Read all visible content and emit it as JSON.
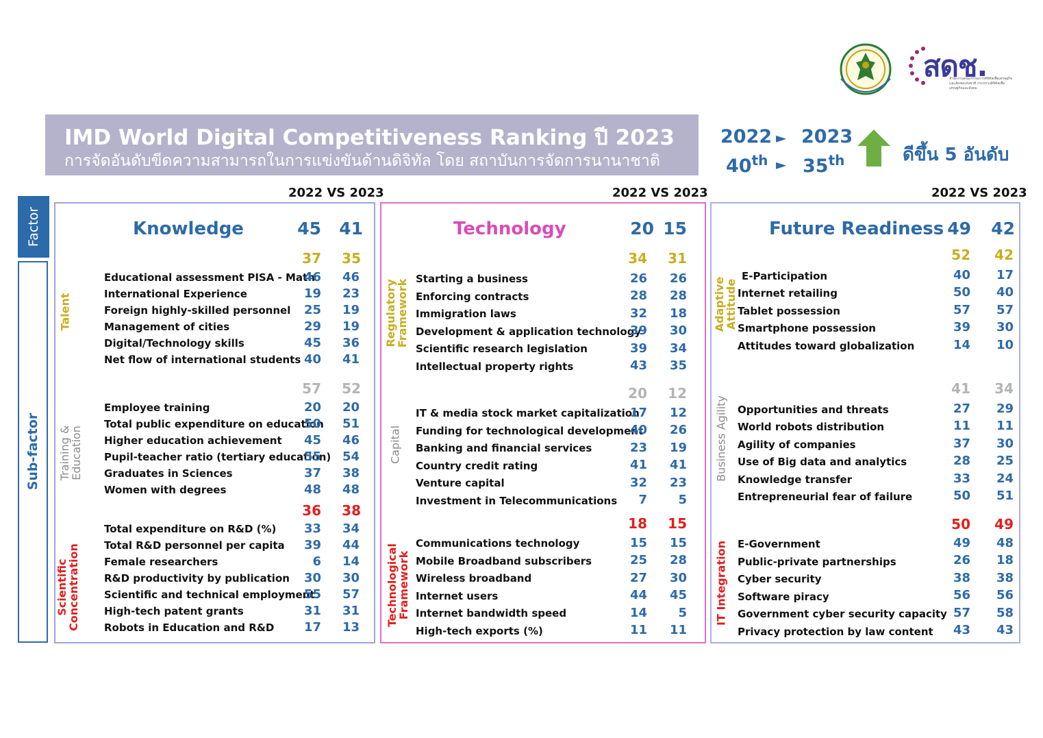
{
  "banner": {
    "title": "IMD World Digital Competitiveness Ranking ปี 2023",
    "subtitle": "การจัดอันดับขีดความสามารถในการแข่งขันด้านดิจิทัล โดย สถาบันการจัดการนานาชาติ"
  },
  "logos": {
    "sdc_text": "สดช.",
    "sdc_small": "สำนักงานคณะกรรมการดิจิทัลเพื่อเศรษฐกิจและสังคมแห่งชาติ กระทรวงดิจิทัลเพื่อเศรษฐกิจและสังคม",
    "mdes_alt": "Ministry of Digital Economy and Society"
  },
  "overall": {
    "year_2022": "2022",
    "year_2023": "2023",
    "rank_2022": "40",
    "rank_2023": "35",
    "rank_suffix": "th",
    "arrow": "►",
    "improvement_text": "ดีขึ้น 5 อันดับ",
    "up_arrow_color": "#6fae45"
  },
  "labels": {
    "vs": "2022 VS 2023",
    "factor": "Factor",
    "sub_factor": "Sub-factor"
  },
  "colors": {
    "blue": "#2d6aa9",
    "gold": "#c9ad1e",
    "gray": "#b4b4b4",
    "red": "#e0201e",
    "technology_title": "#d94cb8"
  },
  "knowledge": {
    "title": "Knowledge",
    "v2022": "45",
    "v2023": "41",
    "talent": {
      "label": "Talent",
      "v2022": "37",
      "v2023": "35",
      "rows": [
        {
          "name": "Educational assessment PISA - Math",
          "a": "46",
          "b": "46"
        },
        {
          "name": "International Experience",
          "a": "19",
          "b": "23"
        },
        {
          "name": "Foreign highly-skilled personnel",
          "a": "25",
          "b": "19"
        },
        {
          "name": "Management of cities",
          "a": "29",
          "b": "19"
        },
        {
          "name": "Digital/Technology skills",
          "a": "45",
          "b": "36"
        },
        {
          "name": "Net flow of international students",
          "a": "40",
          "b": "41"
        }
      ]
    },
    "training": {
      "label1": "Training &",
      "label2": "Education",
      "v2022": "57",
      "v2023": "52",
      "rows": [
        {
          "name": "Employee training",
          "a": "20",
          "b": "20"
        },
        {
          "name": "Total public expenditure on education",
          "a": "50",
          "b": "51"
        },
        {
          "name": "Higher education achievement",
          "a": "45",
          "b": "46"
        },
        {
          "name": "Pupil-teacher ratio (tertiary education)",
          "a": "55",
          "b": "54"
        },
        {
          "name": "Graduates in Sciences",
          "a": "37",
          "b": "38"
        },
        {
          "name": "Women with degrees",
          "a": "48",
          "b": "48"
        }
      ]
    },
    "scientific": {
      "label1": "Scientific",
      "label2": "Concentration",
      "v2022": "36",
      "v2023": "38",
      "rows": [
        {
          "name": "Total expenditure on R&D (%)",
          "a": "33",
          "b": "34"
        },
        {
          "name": "Total R&D personnel per capita",
          "a": "39",
          "b": "44"
        },
        {
          "name": "Female researchers",
          "a": "6",
          "b": "14"
        },
        {
          "name": "R&D productivity by publication",
          "a": "30",
          "b": "30"
        },
        {
          "name": "Scientific and technical employment",
          "a": "55",
          "b": "57"
        },
        {
          "name": "High-tech patent grants",
          "a": "31",
          "b": "31"
        },
        {
          "name": "Robots in Education and R&D",
          "a": "17",
          "b": "13"
        }
      ]
    }
  },
  "technology": {
    "title": "Technology",
    "v2022": "20",
    "v2023": "15",
    "regulatory": {
      "label1": "Regulatory",
      "label2": "Framework",
      "v2022": "34",
      "v2023": "31",
      "rows": [
        {
          "name": "Starting a business",
          "a": "26",
          "b": "26"
        },
        {
          "name": "Enforcing contracts",
          "a": "28",
          "b": "28"
        },
        {
          "name": "Immigration laws",
          "a": "32",
          "b": "18"
        },
        {
          "name": "Development & application technology",
          "a": "39",
          "b": "30"
        },
        {
          "name": "Scientific research legislation",
          "a": "39",
          "b": "34"
        },
        {
          "name": "Intellectual property rights",
          "a": "43",
          "b": "35"
        }
      ]
    },
    "capital": {
      "label": "Capital",
      "v2022": "20",
      "v2023": "12",
      "rows": [
        {
          "name": "IT & media stock market capitalization",
          "a": "17",
          "b": "12"
        },
        {
          "name": "Funding for technological development",
          "a": "40",
          "b": "26"
        },
        {
          "name": "Banking and financial services",
          "a": "23",
          "b": "19"
        },
        {
          "name": "Country credit rating",
          "a": "41",
          "b": "41"
        },
        {
          "name": "Venture capital",
          "a": "32",
          "b": "23"
        },
        {
          "name": "Investment in Telecommunications",
          "a": "7",
          "b": "5"
        }
      ]
    },
    "techframework": {
      "label1": "Technological",
      "label2": "Framework",
      "v2022": "18",
      "v2023": "15",
      "rows": [
        {
          "name": "Communications technology",
          "a": "15",
          "b": "15"
        },
        {
          "name": "Mobile Broadband subscribers",
          "a": "25",
          "b": "28"
        },
        {
          "name": "Wireless broadband",
          "a": "27",
          "b": "30"
        },
        {
          "name": "Internet users",
          "a": "44",
          "b": "45"
        },
        {
          "name": "Internet bandwidth speed",
          "a": "14",
          "b": "5"
        },
        {
          "name": "High-tech exports (%)",
          "a": "11",
          "b": "11"
        }
      ]
    }
  },
  "future": {
    "title": "Future Readiness",
    "v2022": "49",
    "v2023": "42",
    "adaptive": {
      "label1": "Adaptive",
      "label2": "Attitude",
      "v2022": "52",
      "v2023": "42",
      "rows": [
        {
          "name": "E-Participation",
          "a": "40",
          "b": "17"
        },
        {
          "name": "Internet retailing",
          "a": "50",
          "b": "40"
        },
        {
          "name": "Tablet possession",
          "a": "57",
          "b": "57"
        },
        {
          "name": "Smartphone possession",
          "a": "39",
          "b": "30"
        },
        {
          "name": "Attitudes toward globalization",
          "a": "14",
          "b": "10"
        }
      ]
    },
    "agility": {
      "label": "Business Agility",
      "v2022": "41",
      "v2023": "34",
      "rows": [
        {
          "name": "Opportunities and threats",
          "a": "27",
          "b": "29"
        },
        {
          "name": "World robots distribution",
          "a": "11",
          "b": "11"
        },
        {
          "name": "Agility of companies",
          "a": "37",
          "b": "30"
        },
        {
          "name": "Use of Big data and analytics",
          "a": "28",
          "b": "25"
        },
        {
          "name": "Knowledge transfer",
          "a": "33",
          "b": "24"
        },
        {
          "name": "Entrepreneurial fear of failure",
          "a": "50",
          "b": "51"
        }
      ]
    },
    "integration": {
      "label": "IT Integration",
      "v2022": "50",
      "v2023": "49",
      "rows": [
        {
          "name": "E-Government",
          "a": "49",
          "b": "48"
        },
        {
          "name": "Public-private partnerships",
          "a": "26",
          "b": "18"
        },
        {
          "name": "Cyber security",
          "a": "38",
          "b": "38"
        },
        {
          "name": "Software piracy",
          "a": "56",
          "b": "56"
        },
        {
          "name": "Government cyber security capacity",
          "a": "57",
          "b": "58"
        },
        {
          "name": "Privacy protection by law content",
          "a": "43",
          "b": "43"
        }
      ]
    }
  }
}
